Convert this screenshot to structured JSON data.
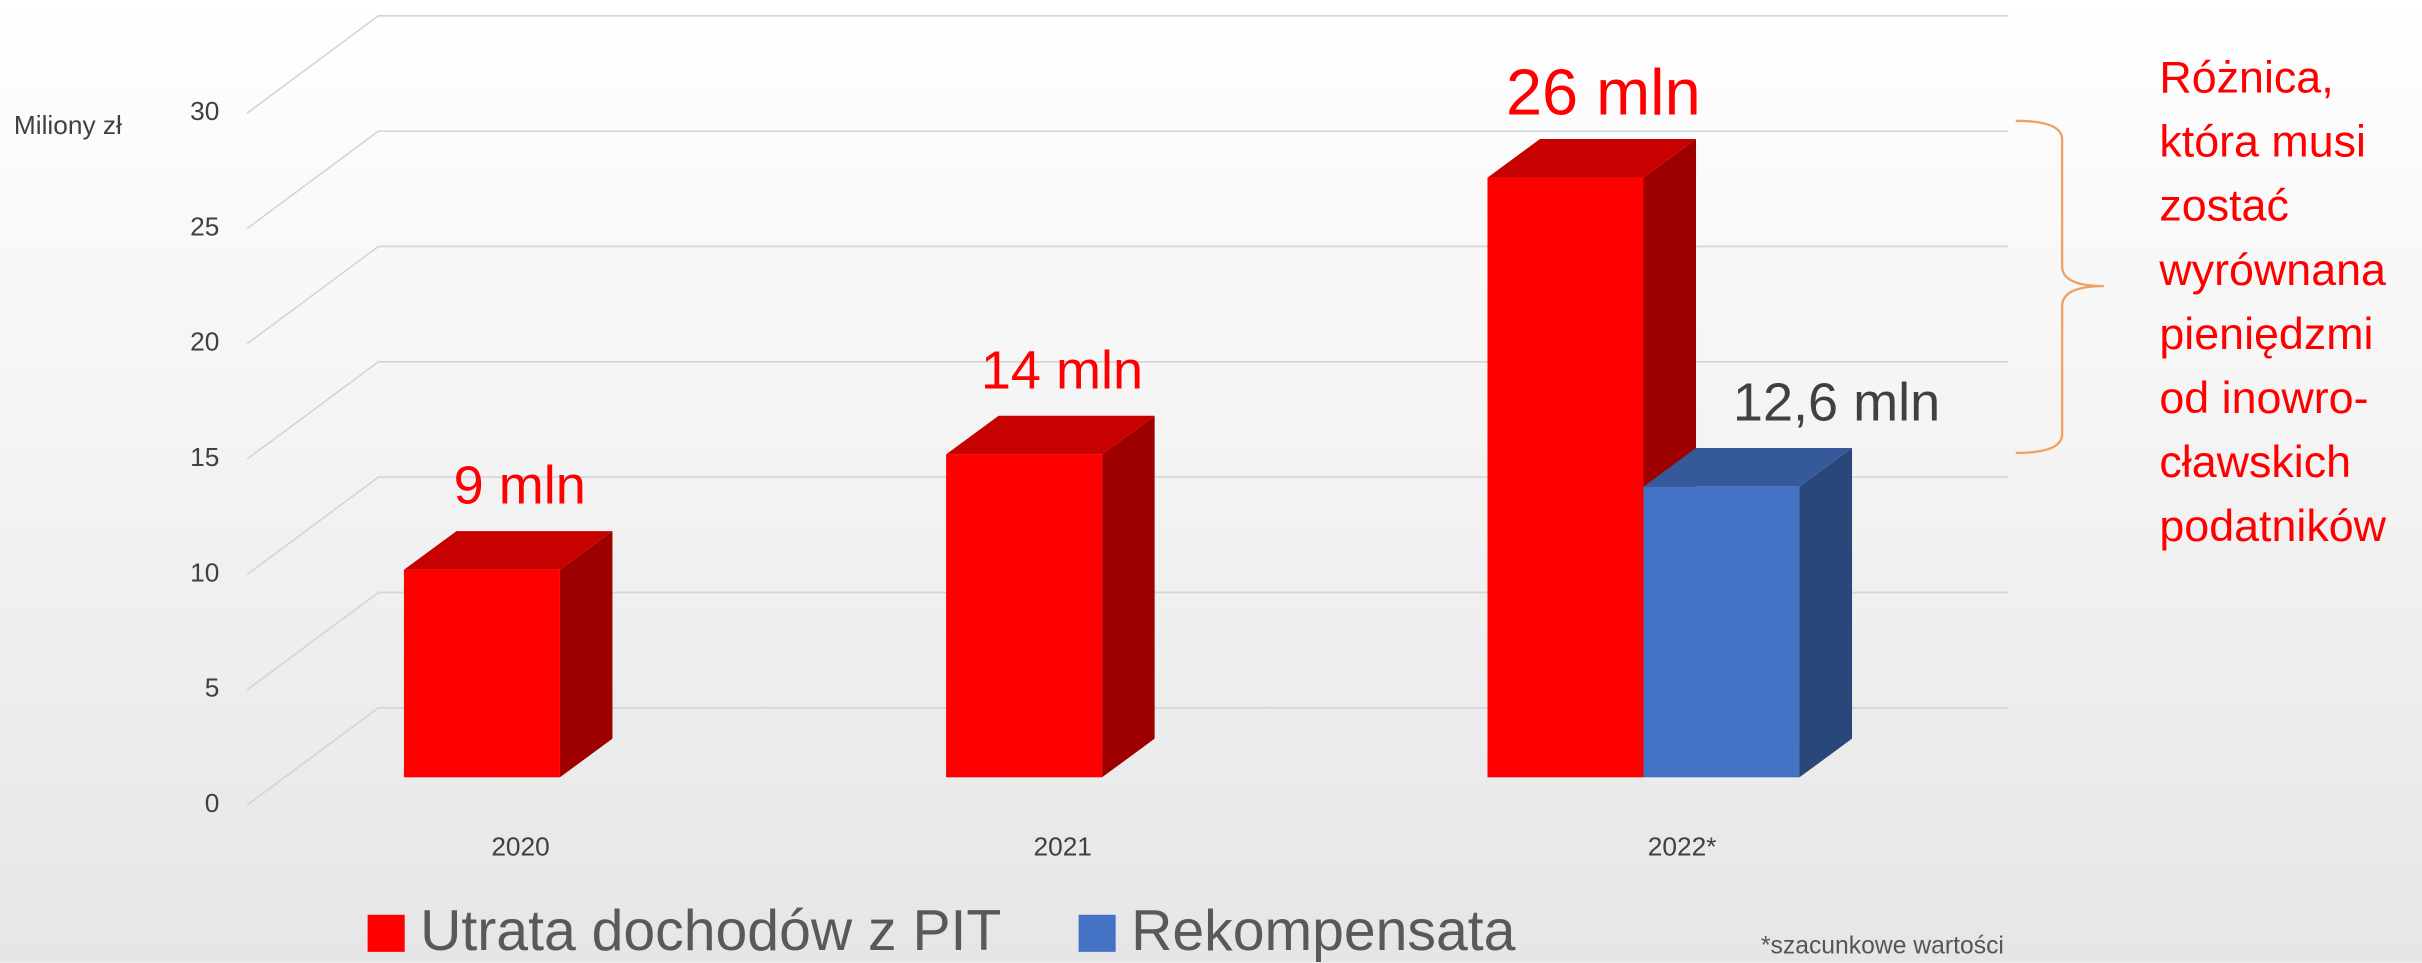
{
  "chart_data": {
    "type": "bar3d",
    "y_label": "Miliony zł",
    "categories": [
      "2020",
      "2021",
      "2022*"
    ],
    "series": [
      {
        "name": "Utrata dochodów z PIT",
        "color": "#ff0000",
        "values": [
          9,
          14,
          26
        ],
        "value_labels": [
          "9 mln",
          "14 mln",
          "26 mln"
        ]
      },
      {
        "name": "Rekompensata",
        "color": "#4472c4",
        "values": [
          null,
          null,
          12.6
        ],
        "value_labels": [
          null,
          null,
          "12,6 mln"
        ]
      }
    ],
    "ylim": [
      0,
      30
    ],
    "yticks": [
      0,
      5,
      10,
      15,
      20,
      25,
      30
    ],
    "grid": true,
    "annotation": [
      "Różnica,",
      "która musi",
      "zostać",
      "wyrównana",
      "pieniędzmi",
      "od inowro-",
      "cławskich",
      "podatników"
    ],
    "footnote": "*szacunkowe wartości"
  }
}
